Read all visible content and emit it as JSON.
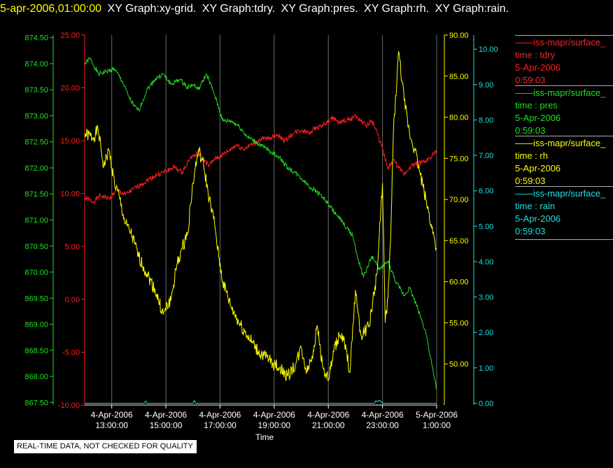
{
  "header": {
    "datetime": "5-apr-2006,01:00:00",
    "titles": [
      "XY Graph:xy-grid.",
      "XY Graph:tdry.",
      "XY Graph:pres.",
      "XY Graph:rh.",
      "XY Graph:rain."
    ],
    "datetime_color": "#ffff00",
    "title_color": "#ffffff"
  },
  "legend": [
    {
      "line": "iss-mapr/surface_",
      "var": "time : tdry",
      "date": "5-Apr-2006",
      "time": "0:59:03",
      "color": "#ff2020"
    },
    {
      "line": "iss-mapr/surface_",
      "var": "time : pres",
      "date": "5-Apr-2006",
      "time": "0:59:03",
      "color": "#20e020"
    },
    {
      "line": "iss-mapr/surface_",
      "var": "time : rh",
      "date": "5-Apr-2006",
      "time": "0:59:03",
      "color": "#ffff00"
    },
    {
      "line": "iss-mapr/surface_",
      "var": "time : rain",
      "date": "5-Apr-2006",
      "time": "0:59:03",
      "color": "#20e0e0"
    }
  ],
  "notice": "REAL-TIME DATA, NOT CHECKED FOR QUALITY",
  "chart_data": {
    "type": "line",
    "xlabel": "Time",
    "x_range_hours": [
      12.0,
      25.0
    ],
    "x_ticks": [
      {
        "h": 13,
        "date": "4-Apr-2006",
        "time": "13:00:00"
      },
      {
        "h": 15,
        "date": "4-Apr-2006",
        "time": "15:00:00"
      },
      {
        "h": 17,
        "date": "4-Apr-2006",
        "time": "17:00:00"
      },
      {
        "h": 19,
        "date": "4-Apr-2006",
        "time": "19:00:00"
      },
      {
        "h": 21,
        "date": "4-Apr-2006",
        "time": "21:00:00"
      },
      {
        "h": 23,
        "date": "4-Apr-2006",
        "time": "23:00:00"
      },
      {
        "h": 25,
        "date": "5-Apr-2006",
        "time": "1:00:00"
      }
    ],
    "grid": "vertical",
    "axes": [
      {
        "name": "pres",
        "side": "left-outer",
        "color": "#20e020",
        "range": [
          867.45,
          874.55
        ],
        "ticks": [
          "867.50",
          "868.00",
          "868.50",
          "869.00",
          "869.50",
          "870.00",
          "870.50",
          "871.00",
          "871.50",
          "872.00",
          "872.50",
          "873.00",
          "873.50",
          "874.00",
          "874.50"
        ]
      },
      {
        "name": "tdry",
        "side": "left-inner",
        "color": "#ff2020",
        "range": [
          -10.0,
          25.0
        ],
        "ticks": [
          "-10.00",
          "-5.00",
          "0.00",
          "5.00",
          "10.00",
          "15.00",
          "20.00",
          "25.00"
        ]
      },
      {
        "name": "rh",
        "side": "right-inner",
        "color": "#ffff00",
        "range": [
          45.0,
          90.0
        ],
        "ticks": [
          "50.00",
          "55.00",
          "60.00",
          "65.00",
          "70.00",
          "75.00",
          "80.00",
          "85.00",
          "90.00"
        ]
      },
      {
        "name": "rain",
        "side": "right-outer",
        "color": "#20e0e0",
        "range": [
          -0.05,
          10.4
        ],
        "ticks": [
          "0.00",
          "1.00",
          "2.00",
          "3.00",
          "4.00",
          "5.00",
          "6.00",
          "7.00",
          "8.00",
          "9.00",
          "10.00"
        ]
      }
    ],
    "series": [
      {
        "name": "tdry",
        "axis": "tdry",
        "color": "#ff2020",
        "x": [
          12.0,
          12.3,
          12.6,
          12.9,
          13.2,
          13.5,
          13.8,
          14.1,
          14.4,
          14.7,
          15.0,
          15.3,
          15.6,
          15.9,
          16.2,
          16.4,
          16.6,
          16.8,
          17.0,
          17.3,
          17.6,
          17.9,
          18.2,
          18.5,
          18.8,
          19.1,
          19.4,
          19.7,
          20.0,
          20.3,
          20.6,
          20.9,
          21.2,
          21.4,
          21.6,
          21.8,
          22.0,
          22.2,
          22.4,
          22.6,
          22.8,
          23.0,
          23.2,
          23.4,
          23.6,
          23.8,
          24.0,
          24.3,
          24.6,
          24.9,
          25.0
        ],
        "y": [
          9.6,
          9.2,
          9.8,
          9.5,
          10.3,
          9.9,
          10.4,
          10.9,
          11.4,
          11.8,
          12.1,
          12.5,
          12.0,
          13.4,
          13.8,
          13.2,
          12.6,
          13.3,
          13.5,
          14.0,
          14.6,
          14.2,
          14.7,
          15.1,
          15.2,
          15.6,
          15.0,
          15.7,
          16.0,
          15.8,
          16.3,
          16.6,
          17.2,
          16.6,
          16.9,
          17.0,
          17.4,
          16.9,
          16.4,
          16.9,
          15.8,
          14.2,
          12.3,
          13.2,
          12.4,
          11.8,
          12.5,
          12.9,
          13.1,
          13.7,
          13.9
        ]
      },
      {
        "name": "pres",
        "axis": "pres",
        "color": "#20e020",
        "x": [
          12.0,
          12.2,
          12.5,
          12.8,
          13.1,
          13.4,
          13.6,
          13.8,
          14.0,
          14.3,
          14.6,
          14.9,
          15.2,
          15.5,
          15.8,
          16.0,
          16.2,
          16.5,
          16.8,
          17.1,
          17.4,
          17.7,
          18.0,
          18.3,
          18.6,
          18.9,
          19.2,
          19.5,
          19.8,
          20.1,
          20.4,
          20.7,
          21.0,
          21.3,
          21.6,
          21.9,
          22.1,
          22.3,
          22.6,
          22.9,
          23.2,
          23.5,
          23.8,
          24.0,
          24.3,
          24.6,
          24.9,
          25.0
        ],
        "y": [
          874.0,
          874.1,
          873.8,
          873.85,
          873.9,
          873.65,
          873.4,
          873.2,
          873.1,
          873.5,
          873.7,
          873.8,
          873.6,
          873.7,
          873.55,
          873.6,
          873.5,
          873.8,
          873.4,
          872.9,
          872.9,
          872.8,
          872.6,
          872.5,
          872.4,
          872.3,
          872.2,
          872.0,
          871.9,
          871.75,
          871.6,
          871.5,
          871.3,
          871.1,
          870.9,
          870.7,
          870.25,
          869.9,
          870.3,
          870.05,
          870.2,
          869.8,
          869.55,
          869.7,
          869.3,
          868.85,
          868.0,
          867.75
        ]
      },
      {
        "name": "rh",
        "axis": "rh",
        "color": "#ffff00",
        "x": [
          12.0,
          12.3,
          12.5,
          12.7,
          12.9,
          13.1,
          13.3,
          13.5,
          13.7,
          14.0,
          14.3,
          14.6,
          14.9,
          15.2,
          15.4,
          15.6,
          15.8,
          16.0,
          16.2,
          16.4,
          16.6,
          16.8,
          16.95,
          17.1,
          17.4,
          17.7,
          18.0,
          18.4,
          18.8,
          19.2,
          19.5,
          19.8,
          20.0,
          20.2,
          20.4,
          20.6,
          20.8,
          21.0,
          21.2,
          21.4,
          21.6,
          21.8,
          22.0,
          22.2,
          22.5,
          22.8,
          23.0,
          23.1,
          23.2,
          23.3,
          23.4,
          23.6,
          23.8,
          24.0,
          24.2,
          24.4,
          24.6,
          24.8,
          25.0
        ],
        "y": [
          78.0,
          77.5,
          78.5,
          74.0,
          76.0,
          72.0,
          70.0,
          67.0,
          66.0,
          63.0,
          61.0,
          59.0,
          56.0,
          58.0,
          62.0,
          64.0,
          66.0,
          72.0,
          76.0,
          74.0,
          70.0,
          67.0,
          63.0,
          60.0,
          57.0,
          55.0,
          53.5,
          51.5,
          50.5,
          49.5,
          48.5,
          50.0,
          52.0,
          49.0,
          51.0,
          54.5,
          49.5,
          48.0,
          51.5,
          53.5,
          52.5,
          49.0,
          59.0,
          53.5,
          54.5,
          61.0,
          72.0,
          55.0,
          58.0,
          65.0,
          78.0,
          88.0,
          82.0,
          78.0,
          76.0,
          73.0,
          70.0,
          67.0,
          64.0
        ]
      },
      {
        "name": "rain",
        "axis": "rain",
        "color": "#20e0e0",
        "x": [
          12.0,
          14.2,
          14.25,
          14.3,
          16.0,
          16.05,
          16.1,
          22.7,
          22.75,
          22.8,
          22.9,
          23.0,
          25.0
        ],
        "y": [
          0.0,
          0.0,
          0.06,
          0.0,
          0.0,
          0.08,
          0.0,
          0.0,
          0.07,
          0.05,
          0.08,
          0.0,
          0.0
        ]
      }
    ]
  }
}
